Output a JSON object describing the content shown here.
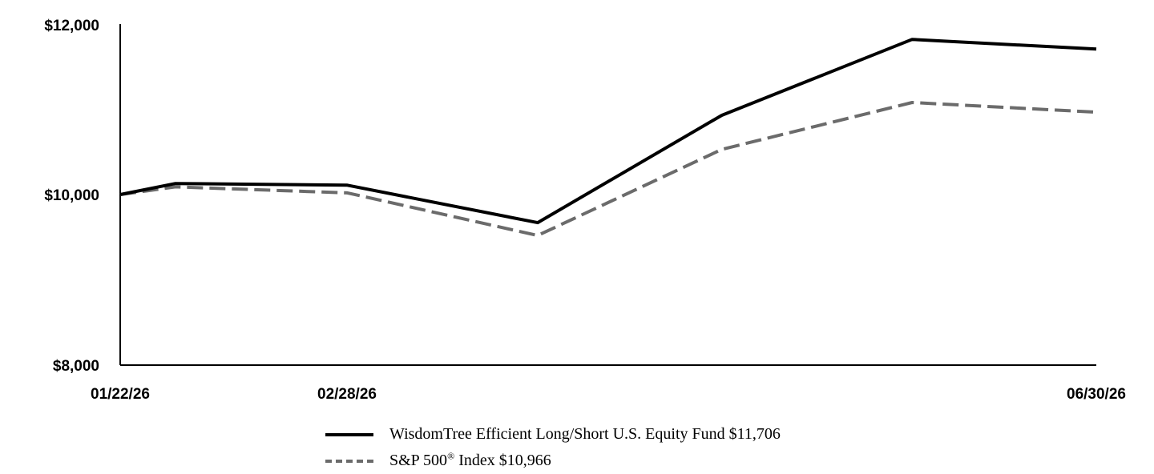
{
  "chart_data": {
    "type": "line",
    "x": [
      "01/22/26",
      "01/31/26",
      "02/28/26",
      "03/31/26",
      "04/30/26",
      "05/31/26",
      "06/30/26"
    ],
    "x_tick_labels": [
      "01/22/26",
      "02/28/26",
      "06/30/26"
    ],
    "y_tick_labels": [
      "$12,000",
      "$10,000",
      "$8,000"
    ],
    "ylim": [
      8000,
      12000
    ],
    "grid": false,
    "legend_position": "bottom",
    "series": [
      {
        "name": "WisdomTree Efficient Long/Short U.S. Equity Fund $11,706",
        "values": [
          10000,
          10130,
          10110,
          9670,
          10930,
          11820,
          11706
        ],
        "color": "#000000",
        "style": "solid"
      },
      {
        "name": "S&P 500® Index $10,966",
        "name_main": "S&P 500",
        "name_sup": "®",
        "name_rest": " Index $10,966",
        "values": [
          10000,
          10090,
          10020,
          9520,
          10530,
          11080,
          10966
        ],
        "color": "#6b6b6b",
        "style": "dashed"
      }
    ]
  }
}
